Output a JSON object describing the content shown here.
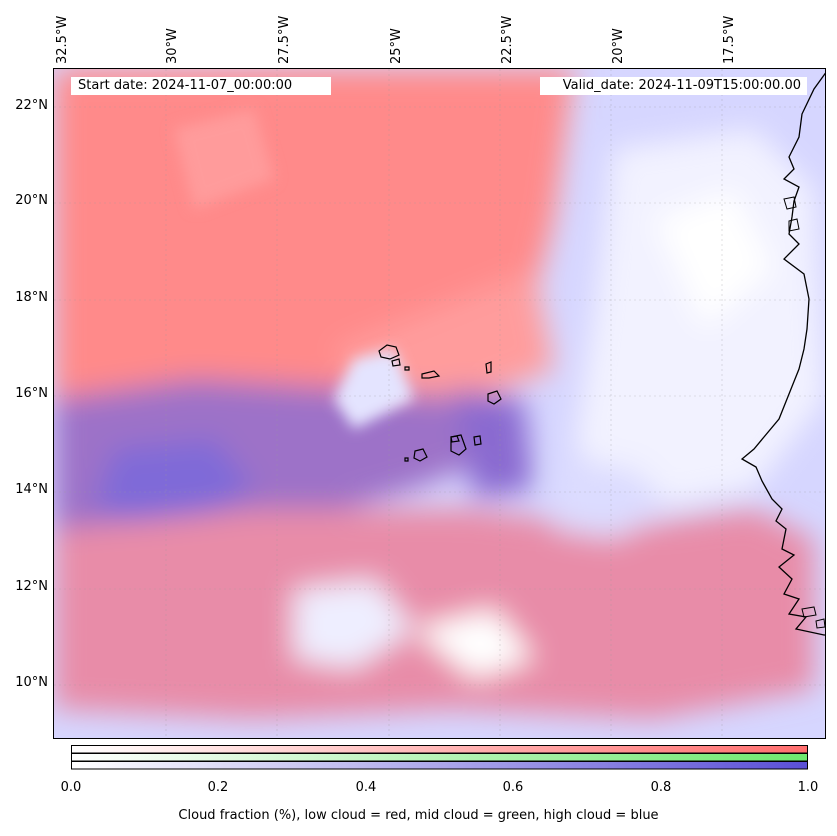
{
  "header": {
    "start_date": "Start date: 2024-11-07_00:00:00",
    "valid_date": "Valid_date: 2024-11-09T15:00:00.00"
  },
  "axes": {
    "lon_labels": [
      "32.5°W",
      "30°W",
      "27.5°W",
      "25°W",
      "22.5°W",
      "20°W",
      "17.5°W"
    ],
    "lat_labels": [
      "22°N",
      "20°N",
      "18°N",
      "16°N",
      "14°N",
      "12°N",
      "10°N"
    ]
  },
  "colorbar": {
    "ticks": [
      "0.0",
      "0.2",
      "0.4",
      "0.6",
      "0.8",
      "1.0"
    ],
    "label": "Cloud fraction (%), low cloud = red, mid cloud = green, high cloud = blue",
    "colors": {
      "low": "#ff6e6e",
      "mid": "#6ee86e",
      "high": "#5a4fd6"
    }
  },
  "map": {
    "colors": {
      "low_cloud": "#ff8a8a",
      "high_cloud": "#b4b4ff",
      "mixed_cloud": "#9c6fc8",
      "clear": "#ffffff",
      "coast": "#000000"
    }
  }
}
